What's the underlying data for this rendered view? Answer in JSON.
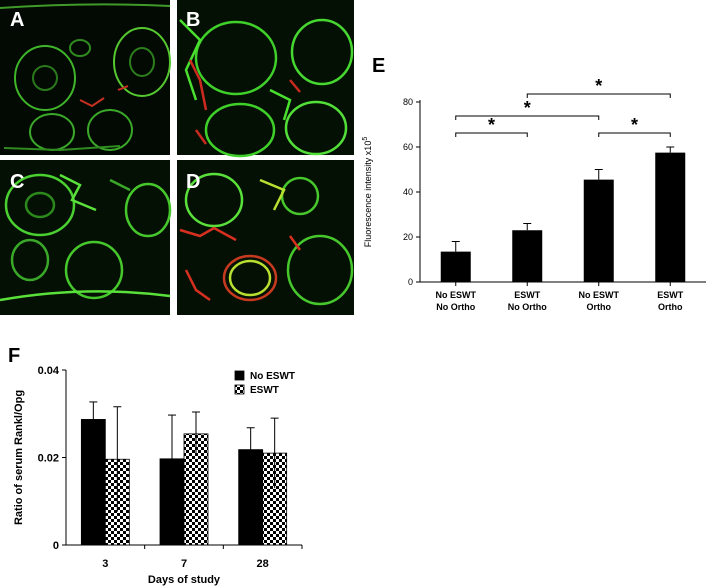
{
  "panels": {
    "A": "A",
    "B": "B",
    "C": "C",
    "D": "D"
  },
  "chart_data": [
    {
      "id": "E",
      "panel_label": "E",
      "type": "bar",
      "categories": [
        [
          "No ESWT",
          "No Ortho"
        ],
        [
          "ESWT",
          "No Ortho"
        ],
        [
          "No ESWT",
          "Ortho"
        ],
        [
          "ESWT",
          "Ortho"
        ]
      ],
      "values": [
        13.5,
        23,
        45.5,
        57.5
      ],
      "errors": [
        4.5,
        3,
        4.5,
        2.5
      ],
      "ylabel": "Fluorescence intensity x10",
      "ylabel_sup": "5",
      "ylim": [
        0,
        80
      ],
      "yticks": [
        "0",
        "20",
        "40",
        "60",
        "80"
      ],
      "ytick_values": [
        0,
        20,
        40,
        60,
        80
      ],
      "significance": [
        {
          "from": 0,
          "to": 1,
          "label": "*"
        },
        {
          "from": 0,
          "to": 2,
          "label": "*"
        },
        {
          "from": 2,
          "to": 3,
          "label": "*"
        },
        {
          "from": 1,
          "to": 3,
          "label": "*"
        }
      ],
      "color": "#000000"
    },
    {
      "id": "F",
      "panel_label": "F",
      "type": "bar",
      "categories": [
        "3",
        "7",
        "28"
      ],
      "series": [
        {
          "name": "No ESWT",
          "values": [
            0.0287,
            0.0197,
            0.0218
          ],
          "errors": [
            0.004,
            0.01,
            0.005
          ]
        },
        {
          "name": "ESWT",
          "values": [
            0.0196,
            0.0254,
            0.021
          ],
          "errors": [
            0.012,
            0.005,
            0.008
          ]
        }
      ],
      "xlabel": "Days of study",
      "ylabel": "Ratio of serum Rankl/Opg",
      "ylim": [
        0,
        0.04
      ],
      "yticks": [
        "0",
        "0.02",
        "0.04"
      ],
      "ytick_values": [
        0,
        0.02,
        0.04
      ],
      "legend_position": "top-right",
      "series_fills": [
        "solid-black",
        "black-white-checker"
      ]
    }
  ]
}
